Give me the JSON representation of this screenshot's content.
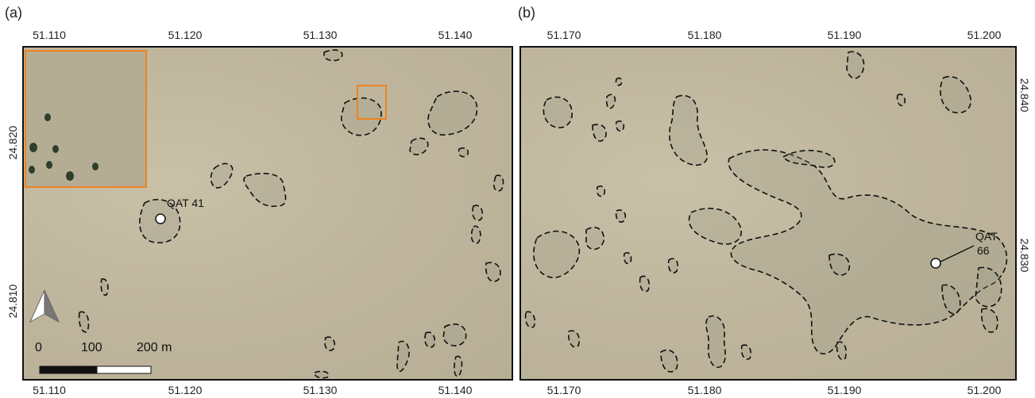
{
  "panels": [
    {
      "label": "(a)",
      "top_ticks": [
        "51.110",
        "51.120",
        "51.130",
        "51.140"
      ],
      "bottom_ticks": [
        "51.110",
        "51.120",
        "51.130",
        "51.140"
      ],
      "left_ticks": [
        "24.820",
        "24.810"
      ],
      "site": "QAT 41",
      "scale": {
        "labels": [
          "0",
          "100",
          "200 m"
        ]
      },
      "north_arrow": "north-arrow-icon",
      "inset_color": "#f0821e"
    },
    {
      "label": "(b)",
      "top_ticks": [
        "51.170",
        "51.180",
        "51.190",
        "51.200"
      ],
      "bottom_ticks": [
        "51.170",
        "51.180",
        "51.190",
        "51.200"
      ],
      "right_ticks": [
        "24.840",
        "24.830"
      ],
      "site_line1": "QAT",
      "site_line2": "66"
    }
  ]
}
